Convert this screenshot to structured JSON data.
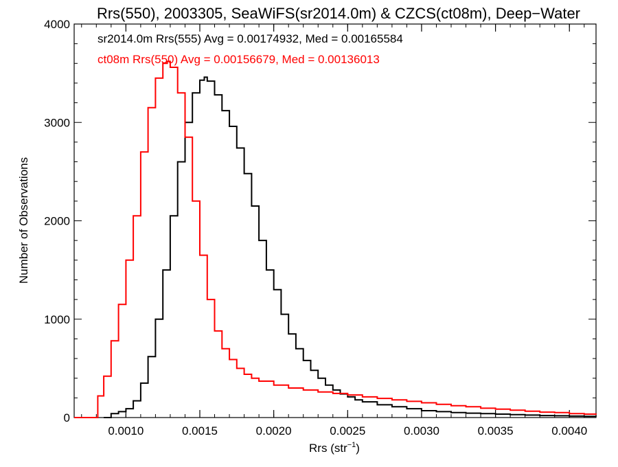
{
  "chart_data": {
    "type": "line",
    "title": "Rrs(550), 2003305, SeaWiFS(sr2014.0m) & CZCS(ct08m), Deep−Water",
    "xlabel": "Rrs (str",
    "xlabel_sup": "−1",
    "xlabel_end": ")",
    "ylabel": "Number of Observations",
    "xlim": [
      0.00065,
      0.00418
    ],
    "ylim": [
      0,
      4000
    ],
    "x_ticks": [
      0.001,
      0.0015,
      0.002,
      0.0025,
      0.003,
      0.0035,
      0.004
    ],
    "x_tick_labels": [
      "0.0010",
      "0.0015",
      "0.0020",
      "0.0025",
      "0.0030",
      "0.0035",
      "0.0040"
    ],
    "y_ticks": [
      0,
      1000,
      2000,
      3000,
      4000
    ],
    "y_tick_labels": [
      "0",
      "1000",
      "2000",
      "3000",
      "4000"
    ],
    "grid": false,
    "legend_placement": "top-left",
    "series": [
      {
        "name": "sr2014.0m Rrs(555) Avg = 0.00174932, Med = 0.00165584",
        "color": "#000000",
        "points": [
          [
            0.00085,
            0
          ],
          [
            0.0009,
            40
          ],
          [
            0.00095,
            60
          ],
          [
            0.001,
            90
          ],
          [
            0.00105,
            170
          ],
          [
            0.0011,
            350
          ],
          [
            0.00115,
            620
          ],
          [
            0.0012,
            1000
          ],
          [
            0.00125,
            1500
          ],
          [
            0.0013,
            2050
          ],
          [
            0.00135,
            2600
          ],
          [
            0.0014,
            3000
          ],
          [
            0.00145,
            3300
          ],
          [
            0.0015,
            3430
          ],
          [
            0.00153,
            3460
          ],
          [
            0.00155,
            3420
          ],
          [
            0.0016,
            3280
          ],
          [
            0.00165,
            3120
          ],
          [
            0.0017,
            2960
          ],
          [
            0.00175,
            2740
          ],
          [
            0.0018,
            2480
          ],
          [
            0.00185,
            2150
          ],
          [
            0.0019,
            1800
          ],
          [
            0.00195,
            1500
          ],
          [
            0.002,
            1300
          ],
          [
            0.00205,
            1050
          ],
          [
            0.0021,
            850
          ],
          [
            0.00215,
            700
          ],
          [
            0.0022,
            580
          ],
          [
            0.00225,
            480
          ],
          [
            0.0023,
            400
          ],
          [
            0.00235,
            330
          ],
          [
            0.0024,
            280
          ],
          [
            0.00245,
            240
          ],
          [
            0.0025,
            210
          ],
          [
            0.00255,
            180
          ],
          [
            0.0026,
            160
          ],
          [
            0.0027,
            130
          ],
          [
            0.0028,
            110
          ],
          [
            0.0029,
            90
          ],
          [
            0.003,
            70
          ],
          [
            0.0031,
            60
          ],
          [
            0.0032,
            50
          ],
          [
            0.0033,
            45
          ],
          [
            0.0034,
            40
          ],
          [
            0.0035,
            35
          ],
          [
            0.0036,
            30
          ],
          [
            0.0037,
            25
          ],
          [
            0.0038,
            20
          ],
          [
            0.0039,
            18
          ],
          [
            0.004,
            15
          ],
          [
            0.0041,
            12
          ],
          [
            0.00418,
            10
          ]
        ]
      },
      {
        "name": "ct08m Rrs(550) Avg = 0.00156679, Med = 0.00136013",
        "color": "#ff0000",
        "points": [
          [
            0.00065,
            0
          ],
          [
            0.0008,
            0
          ],
          [
            0.00081,
            220
          ],
          [
            0.00085,
            420
          ],
          [
            0.0009,
            780
          ],
          [
            0.00095,
            1150
          ],
          [
            0.001,
            1600
          ],
          [
            0.00105,
            2050
          ],
          [
            0.0011,
            2700
          ],
          [
            0.00115,
            3150
          ],
          [
            0.0012,
            3450
          ],
          [
            0.00125,
            3600
          ],
          [
            0.00128,
            3620
          ],
          [
            0.0013,
            3560
          ],
          [
            0.00135,
            3300
          ],
          [
            0.0014,
            2850
          ],
          [
            0.00145,
            2200
          ],
          [
            0.0015,
            1650
          ],
          [
            0.00155,
            1200
          ],
          [
            0.0016,
            880
          ],
          [
            0.00165,
            700
          ],
          [
            0.0017,
            590
          ],
          [
            0.00175,
            500
          ],
          [
            0.0018,
            440
          ],
          [
            0.00185,
            400
          ],
          [
            0.0019,
            370
          ],
          [
            0.002,
            330
          ],
          [
            0.0021,
            300
          ],
          [
            0.0022,
            280
          ],
          [
            0.0023,
            260
          ],
          [
            0.0024,
            245
          ],
          [
            0.0025,
            230
          ],
          [
            0.0026,
            210
          ],
          [
            0.0027,
            195
          ],
          [
            0.0028,
            180
          ],
          [
            0.0029,
            165
          ],
          [
            0.003,
            150
          ],
          [
            0.0031,
            135
          ],
          [
            0.0032,
            120
          ],
          [
            0.0033,
            110
          ],
          [
            0.0034,
            95
          ],
          [
            0.0035,
            85
          ],
          [
            0.0036,
            75
          ],
          [
            0.0037,
            65
          ],
          [
            0.0038,
            55
          ],
          [
            0.0039,
            50
          ],
          [
            0.004,
            40
          ],
          [
            0.0041,
            35
          ],
          [
            0.00418,
            30
          ]
        ]
      }
    ]
  }
}
